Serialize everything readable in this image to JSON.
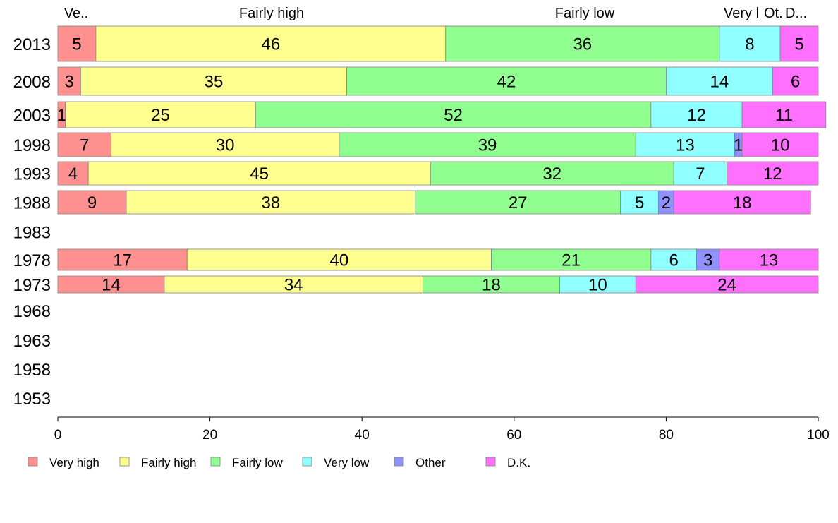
{
  "chart_data": {
    "type": "bar",
    "orientation": "horizontal",
    "stacked": true,
    "title": "",
    "xlabel": "",
    "ylabel": "",
    "xlim": [
      0,
      100
    ],
    "x_ticks": [
      "0",
      "20",
      "40",
      "60",
      "80",
      "100"
    ],
    "categories": [
      "2013",
      "2008",
      "2003",
      "1998",
      "1993",
      "1988",
      "1983",
      "1978",
      "1973",
      "1968",
      "1963",
      "1958",
      "1953"
    ],
    "top_labels": [
      "Ve..",
      "Fairly high",
      "Fairly low",
      "Very l",
      "Ot.",
      "D..."
    ],
    "series": [
      {
        "name": "Very high",
        "color": "#ff9090",
        "values": [
          5,
          3,
          1,
          7,
          4,
          9,
          null,
          17,
          14,
          null,
          null,
          null,
          null
        ]
      },
      {
        "name": "Fairly high",
        "color": "#ffff90",
        "values": [
          46,
          35,
          25,
          30,
          45,
          38,
          null,
          40,
          34,
          null,
          null,
          null,
          null
        ]
      },
      {
        "name": "Fairly low",
        "color": "#90ff90",
        "values": [
          36,
          42,
          52,
          39,
          32,
          27,
          null,
          21,
          18,
          null,
          null,
          null,
          null
        ]
      },
      {
        "name": "Very low",
        "color": "#90ffff",
        "values": [
          8,
          14,
          12,
          13,
          7,
          5,
          null,
          6,
          10,
          null,
          null,
          null,
          null
        ]
      },
      {
        "name": "Other",
        "color": "#9090ff",
        "values": [
          0,
          0,
          0,
          1,
          0,
          2,
          null,
          3,
          0,
          null,
          null,
          null,
          null
        ]
      },
      {
        "name": "D.K.",
        "color": "#ff70ff",
        "values": [
          5,
          6,
          11,
          10,
          12,
          18,
          null,
          13,
          24,
          null,
          null,
          null,
          null
        ]
      }
    ],
    "legend": {
      "position": "bottom"
    },
    "grid": false
  }
}
